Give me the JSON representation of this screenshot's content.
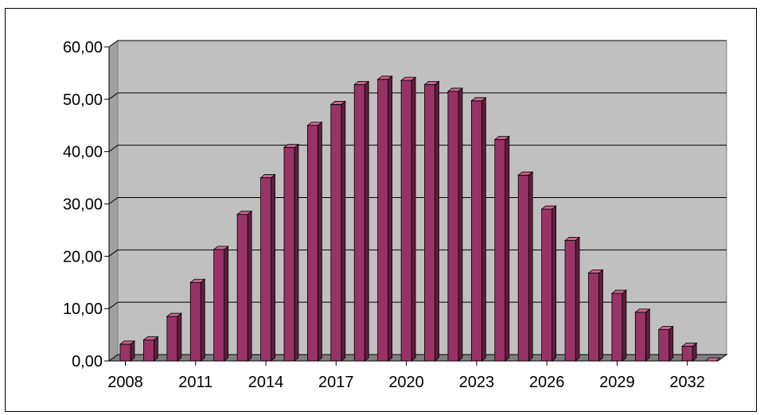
{
  "chart_data": {
    "type": "bar",
    "categories": [
      "2008",
      "2009",
      "2010",
      "2011",
      "2012",
      "2013",
      "2014",
      "2015",
      "2016",
      "2017",
      "2018",
      "2019",
      "2020",
      "2021",
      "2022",
      "2023",
      "2024",
      "2025",
      "2026",
      "2027",
      "2028",
      "2029",
      "2030",
      "2031",
      "2032",
      "2033"
    ],
    "values": [
      3.2,
      4.0,
      8.5,
      15.0,
      21.3,
      28.0,
      35.0,
      40.8,
      45.0,
      49.0,
      52.8,
      53.8,
      53.6,
      52.8,
      51.5,
      49.7,
      42.3,
      35.5,
      29.0,
      23.0,
      16.8,
      12.9,
      9.3,
      6.0,
      2.8,
      0.0
    ],
    "x_tick_labels": [
      "2008",
      "2011",
      "2014",
      "2017",
      "2020",
      "2023",
      "2026",
      "2029",
      "2032"
    ],
    "y_tick_labels": [
      "0,00",
      "10,00",
      "20,00",
      "30,00",
      "40,00",
      "50,00",
      "60,00"
    ],
    "ylim": [
      0,
      60
    ],
    "grid": true,
    "legend": "none",
    "title": "",
    "xlabel": "",
    "ylabel": "",
    "colors": {
      "bar_front": "#993366",
      "bar_top": "#c7668f",
      "bar_side": "#5c1f3d",
      "plot_back": "#c0c0c0",
      "plot_side": "#a0a0a0",
      "floor": "#808080",
      "gridline": "#000000"
    }
  }
}
